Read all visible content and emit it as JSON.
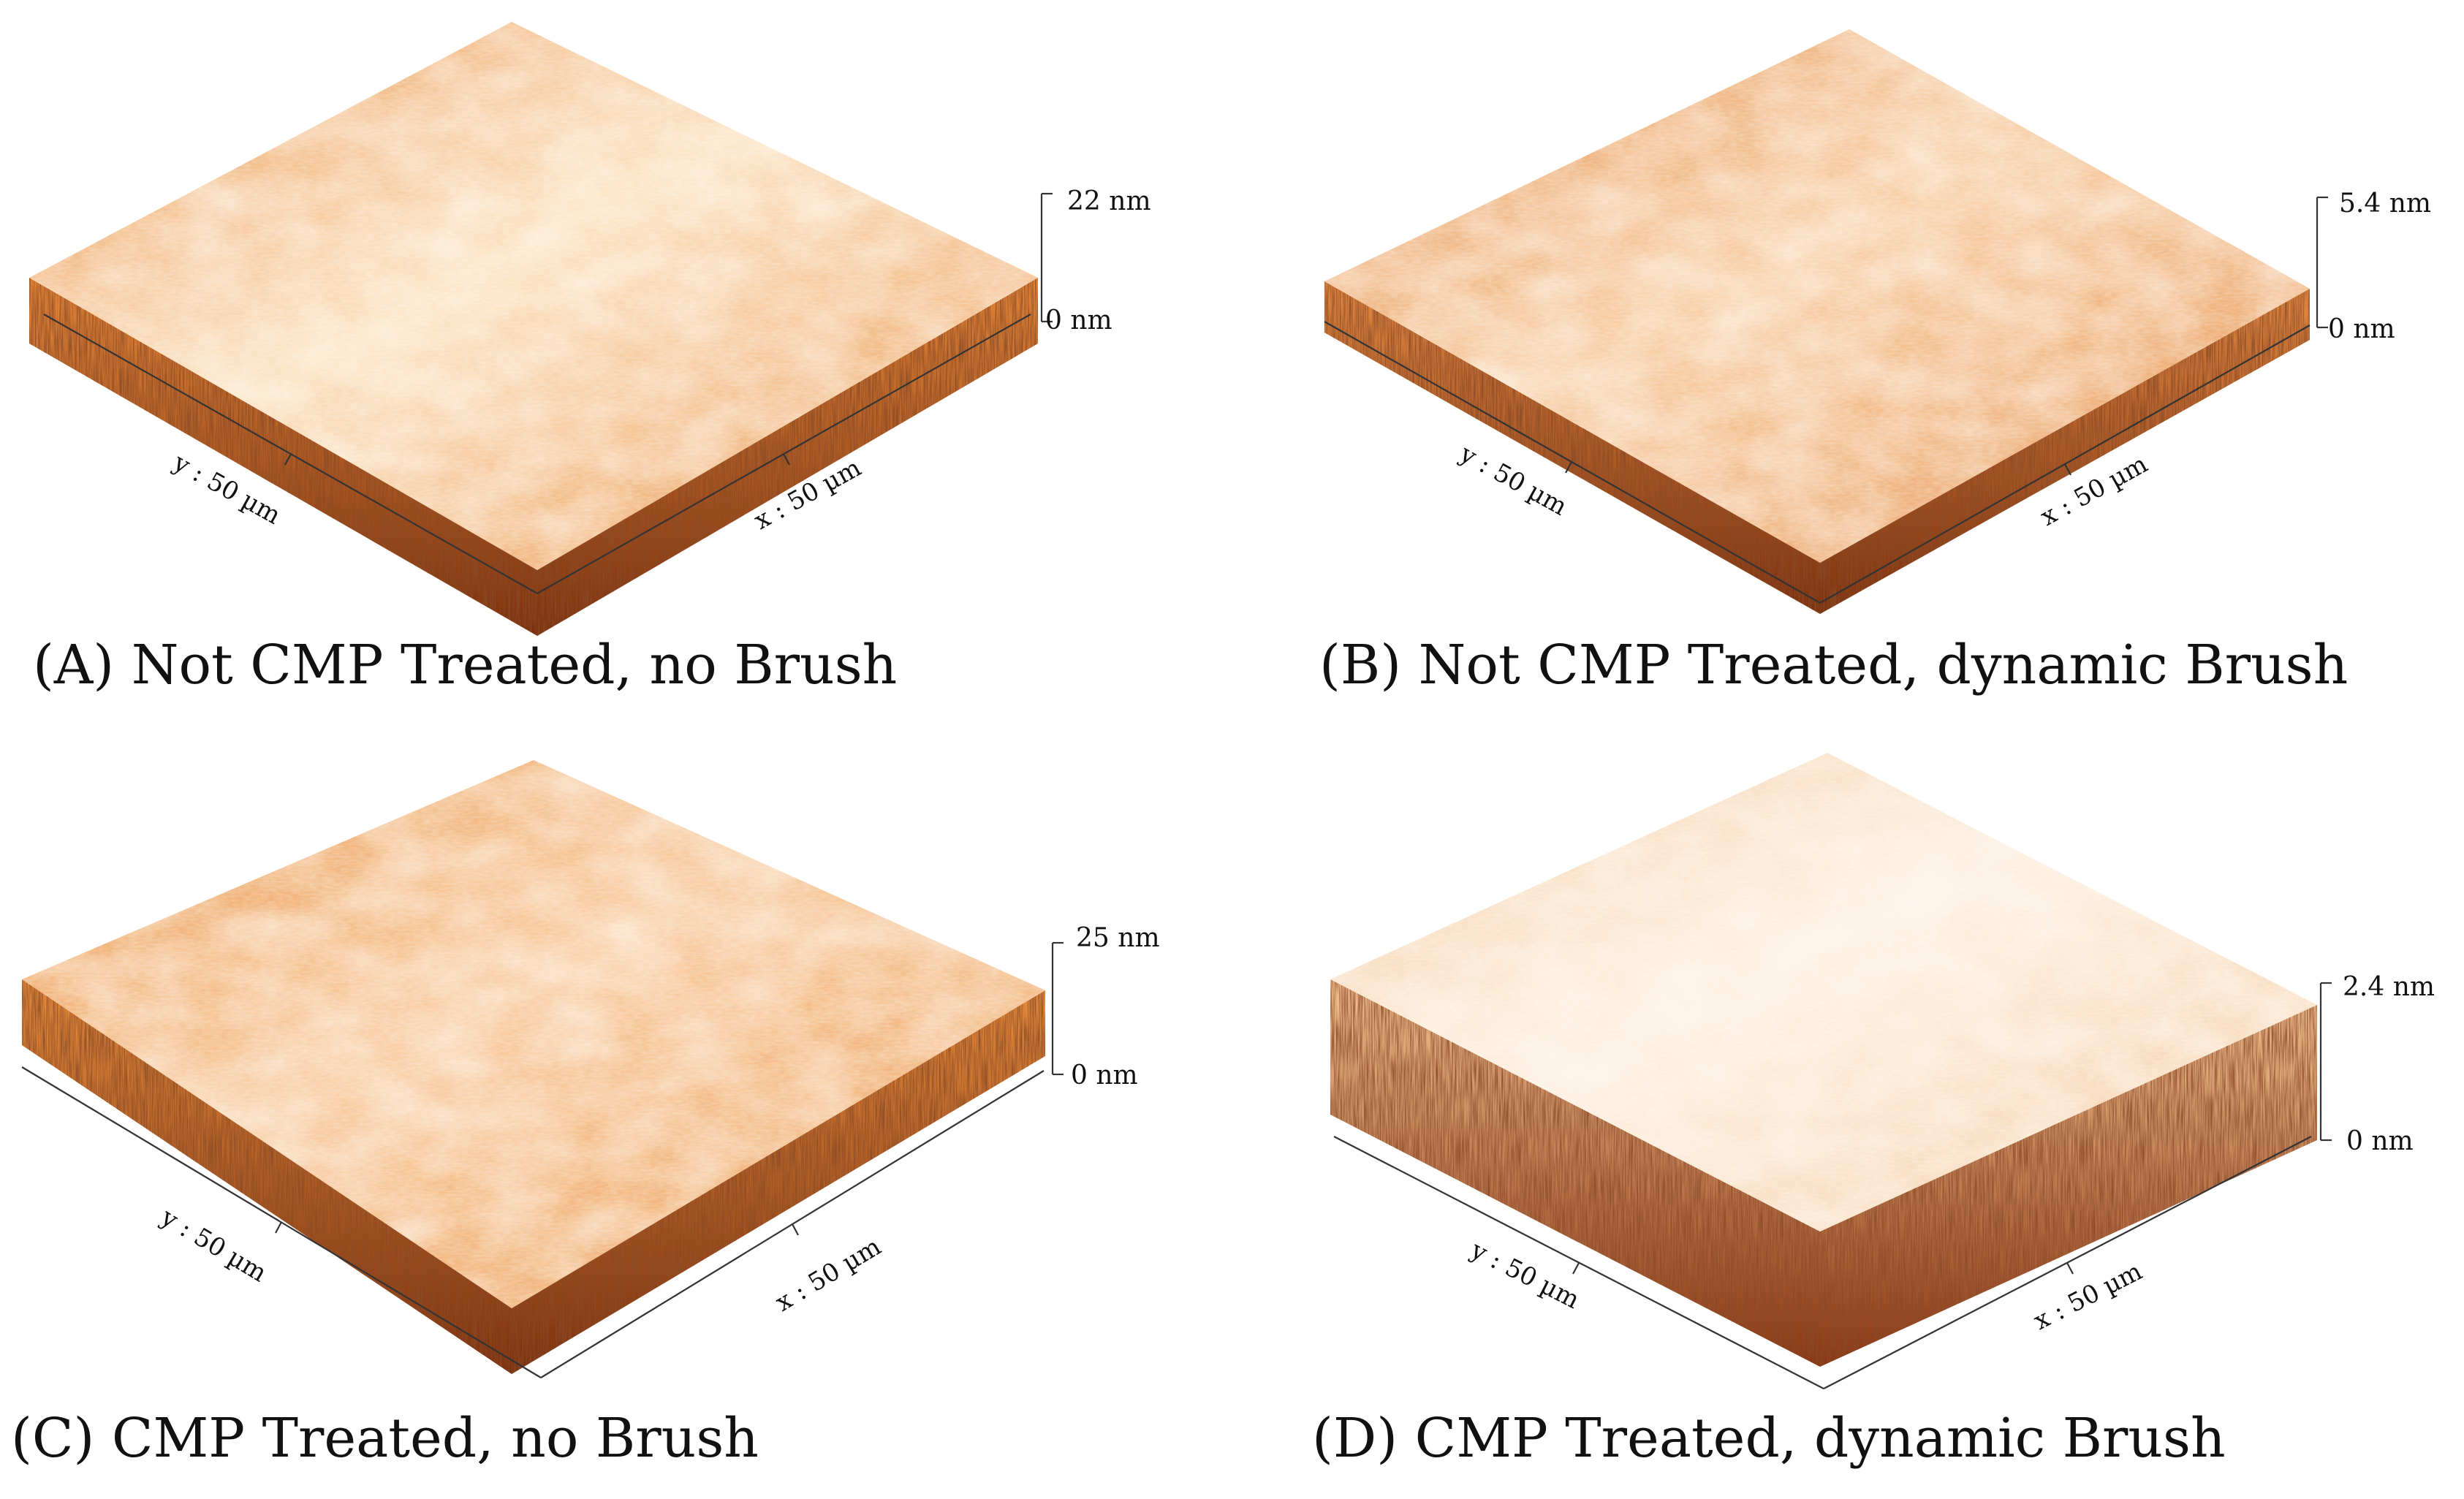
{
  "panels": [
    {
      "id": "A",
      "caption": "(A) Not CMP Treated, no Brush",
      "y_axis_label": "y : 50 µm",
      "x_axis_label": "x : 50 µm",
      "z_max_label": "22 nm",
      "z_min_label": "0 nm",
      "surface_colors": {
        "base": "#e8893a",
        "highlight": "#fbdcb4",
        "shadow": "#7a2e0c"
      }
    },
    {
      "id": "B",
      "caption": "(B) Not CMP Treated, dynamic Brush",
      "y_axis_label": "y : 50 µm",
      "x_axis_label": "x : 50 µm",
      "z_max_label": "5.4 nm",
      "z_min_label": "0 nm",
      "surface_colors": {
        "base": "#e58a43",
        "highlight": "#f6c593",
        "shadow": "#7a2e0c"
      }
    },
    {
      "id": "C",
      "caption": "(C) CMP Treated, no Brush",
      "y_axis_label": "y : 50 µm",
      "x_axis_label": "x : 50 µm",
      "z_max_label": "25 nm",
      "z_min_label": "0 nm",
      "surface_colors": {
        "base": "#e98e3d",
        "highlight": "#f7c28e",
        "shadow": "#7a2e0c"
      }
    },
    {
      "id": "D",
      "caption": "(D) CMP Treated, dynamic Brush",
      "y_axis_label": "y : 50 µm",
      "x_axis_label": "x : 50 µm",
      "z_max_label": "2.4 nm",
      "z_min_label": "0 nm",
      "surface_colors": {
        "base": "#f4c394",
        "highlight": "#fdeedc",
        "shadow": "#8a3512"
      }
    }
  ]
}
